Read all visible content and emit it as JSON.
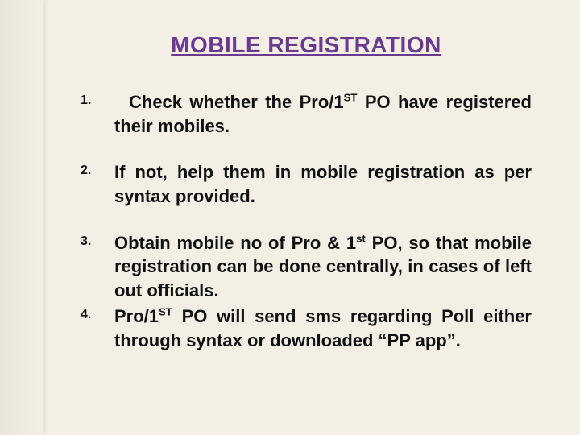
{
  "background_color": "#f3efe4",
  "margin_strip_color": "#eae6da",
  "title": {
    "text": "MOBILE REGISTRATION",
    "color": "#6b3a90",
    "font_size_pt": 21,
    "underline": true,
    "bold": true,
    "align": "center"
  },
  "text_color": "#111111",
  "body_font_size_pt": 17,
  "body_bold": true,
  "body_align": "justify",
  "items": [
    {
      "number": "1.",
      "html": "Check whether the Pro/1<sup>ST</sup> PO have registered their mobiles.",
      "first_line_indent": true
    },
    {
      "number": "2.",
      "html": "If not, help them in mobile registration as per syntax provided.",
      "first_line_indent": false
    },
    {
      "number": "3.",
      "html": "Obtain mobile no of Pro & 1<sup>st</sup> PO, so that mobile registration can be done centrally, in cases of left out officials.",
      "first_line_indent": false,
      "tight_below": true
    },
    {
      "number": "4.",
      "html": "Pro/1<sup>ST</sup> PO will send sms regarding Poll either through syntax or downloaded “PP app”.",
      "first_line_indent": false
    }
  ]
}
